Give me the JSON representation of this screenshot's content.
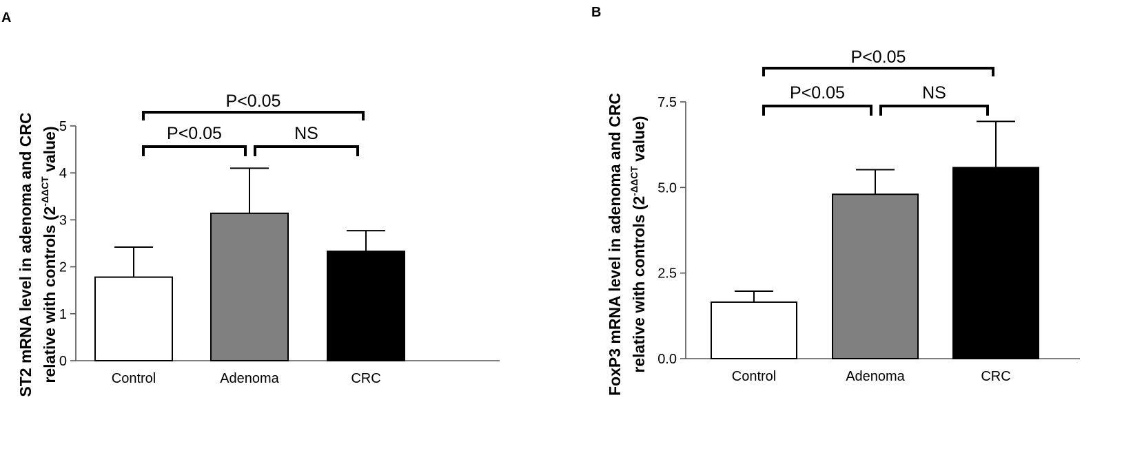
{
  "chart_data": [
    {
      "type": "bar",
      "panel_label": "A",
      "ylabel_main": "ST2 mRNA level in adenoma and CRC",
      "ylabel_line2_prefix": "relative with controls (2",
      "ylabel_superscript": "-ΔΔCT",
      "ylabel_line2_suffix": " value)",
      "categories": [
        "Control",
        "Adenoma",
        "CRC"
      ],
      "values": [
        1.78,
        3.14,
        2.33
      ],
      "errors": [
        0.64,
        0.96,
        0.44
      ],
      "bar_colors": [
        "#ffffff",
        "#808080",
        "#000000"
      ],
      "yticks": [
        "0",
        "1",
        "2",
        "3",
        "4",
        "5"
      ],
      "ylim": [
        0,
        5
      ],
      "significance": [
        {
          "label": "P<0.05",
          "from": "Control",
          "to": "Adenoma"
        },
        {
          "label": "NS",
          "from": "Adenoma",
          "to": "CRC"
        },
        {
          "label": "P<0.05",
          "from": "Control",
          "to": "CRC"
        }
      ]
    },
    {
      "type": "bar",
      "panel_label": "B",
      "ylabel_main": "FoxP3 mRNA level in adenoma and CRC",
      "ylabel_line2_prefix": "relative with controls (2",
      "ylabel_superscript": "-ΔΔCT",
      "ylabel_line2_suffix": " value)",
      "categories": [
        "Control",
        "Adenoma",
        "CRC"
      ],
      "values": [
        1.65,
        4.8,
        5.58
      ],
      "errors": [
        0.32,
        0.72,
        1.35
      ],
      "bar_colors": [
        "#ffffff",
        "#808080",
        "#000000"
      ],
      "yticks": [
        "0.0",
        "2.5",
        "5.0",
        "7.5"
      ],
      "ylim": [
        0,
        7.5
      ],
      "significance": [
        {
          "label": "P<0.05",
          "from": "Control",
          "to": "Adenoma"
        },
        {
          "label": "NS",
          "from": "Adenoma",
          "to": "CRC"
        },
        {
          "label": "P<0.05",
          "from": "Control",
          "to": "CRC"
        }
      ]
    }
  ]
}
